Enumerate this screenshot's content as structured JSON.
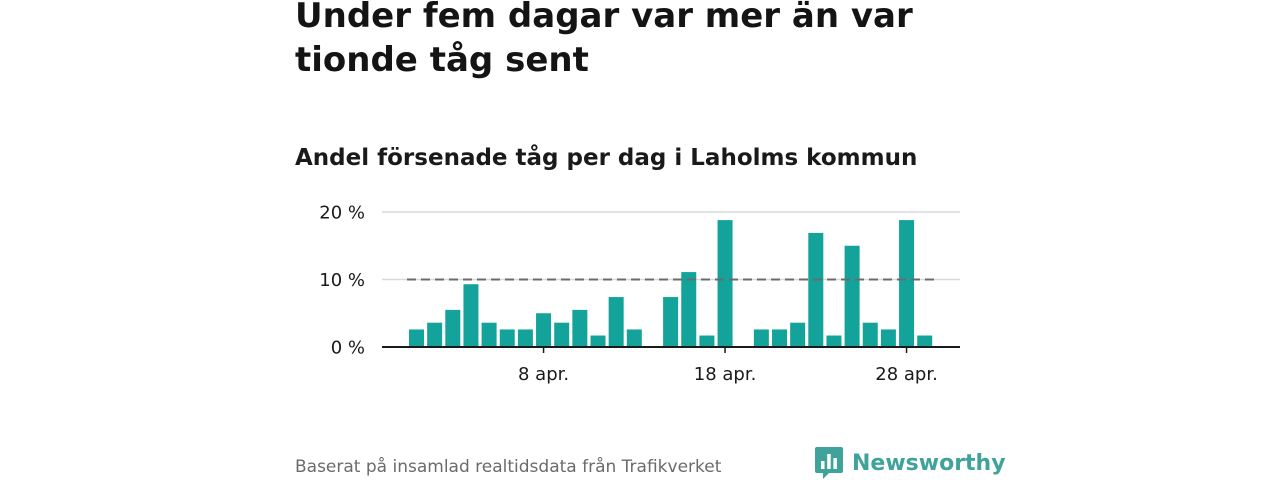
{
  "header": {
    "title": "Under fem dagar var mer än var tionde tåg sent",
    "subtitle": "Andel försenade tåg per dag i Laholms kommun"
  },
  "footer": {
    "source": "Baserat på insamlad realtidsdata från Trafikverket",
    "brand": "Newsworthy"
  },
  "colors": {
    "bar": "#13a39a",
    "reference_line": "#6b6b6b",
    "grid": "#d9d9d9",
    "axis": "#1a1a1a",
    "brand": "#3fa39b"
  },
  "chart_data": {
    "type": "bar",
    "x_unit": "day",
    "x": [
      "2024-04-01",
      "2024-04-02",
      "2024-04-03",
      "2024-04-04",
      "2024-04-05",
      "2024-04-06",
      "2024-04-07",
      "2024-04-08",
      "2024-04-09",
      "2024-04-10",
      "2024-04-11",
      "2024-04-12",
      "2024-04-13",
      "2024-04-14",
      "2024-04-15",
      "2024-04-16",
      "2024-04-17",
      "2024-04-18",
      "2024-04-19",
      "2024-04-20",
      "2024-04-21",
      "2024-04-22",
      "2024-04-23",
      "2024-04-24",
      "2024-04-25",
      "2024-04-26",
      "2024-04-27",
      "2024-04-28",
      "2024-04-29",
      "2024-04-30"
    ],
    "values": [
      2.6,
      3.6,
      5.5,
      9.3,
      3.6,
      2.6,
      2.6,
      5.0,
      3.6,
      5.5,
      1.7,
      7.4,
      2.6,
      null,
      7.4,
      11.1,
      1.7,
      18.8,
      null,
      2.6,
      2.6,
      3.6,
      16.9,
      1.7,
      15.0,
      3.6,
      2.6,
      18.8,
      1.7,
      null
    ],
    "reference_line": 10,
    "ylim": [
      0,
      20
    ],
    "yticks": [
      0,
      10,
      20
    ],
    "ytick_labels": [
      "0 %",
      "10 %",
      "20 %"
    ],
    "xticks": [
      "2024-04-08",
      "2024-04-18",
      "2024-04-28"
    ],
    "xtick_labels": [
      "8 apr.",
      "18 apr.",
      "28 apr."
    ],
    "grid": true,
    "legend": "none"
  }
}
